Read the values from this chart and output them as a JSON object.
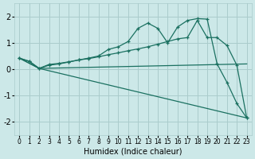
{
  "xlabel": "Humidex (Indice chaleur)",
  "xlim": [
    -0.5,
    23.5
  ],
  "ylim": [
    -2.5,
    2.5
  ],
  "xticks": [
    0,
    1,
    2,
    3,
    4,
    5,
    6,
    7,
    8,
    9,
    10,
    11,
    12,
    13,
    14,
    15,
    16,
    17,
    18,
    19,
    20,
    21,
    22,
    23
  ],
  "yticks": [
    -2,
    -1,
    0,
    1,
    2
  ],
  "bg_color": "#cce8e8",
  "grid_color": "#aacccc",
  "line_color": "#1a7060",
  "line1_x": [
    0,
    1,
    2,
    3,
    4,
    5,
    6,
    7,
    8,
    9,
    10,
    11,
    12,
    13,
    14,
    15,
    16,
    17,
    18,
    19,
    20,
    21,
    22,
    23
  ],
  "line1_y": [
    0.42,
    0.3,
    0.03,
    0.15,
    0.2,
    0.27,
    0.35,
    0.42,
    0.5,
    0.75,
    0.85,
    1.05,
    1.55,
    1.75,
    1.55,
    1.0,
    1.6,
    1.85,
    1.92,
    1.9,
    0.2,
    -0.5,
    -1.3,
    -1.85
  ],
  "line2_x": [
    0,
    1,
    2,
    3,
    4,
    5,
    6,
    7,
    8,
    9,
    10,
    11,
    12,
    13,
    14,
    15,
    16,
    17,
    18,
    19,
    20,
    21,
    22,
    23
  ],
  "line2_y": [
    0.42,
    0.3,
    0.03,
    0.18,
    0.22,
    0.28,
    0.35,
    0.4,
    0.47,
    0.55,
    0.62,
    0.7,
    0.77,
    0.85,
    0.95,
    1.05,
    1.15,
    1.2,
    1.85,
    1.2,
    1.2,
    0.9,
    0.15,
    -1.85
  ],
  "line3_x": [
    0,
    2,
    23
  ],
  "line3_y": [
    0.42,
    0.03,
    0.2
  ],
  "line4_x": [
    0,
    2,
    23
  ],
  "line4_y": [
    0.42,
    0.03,
    -1.85
  ]
}
